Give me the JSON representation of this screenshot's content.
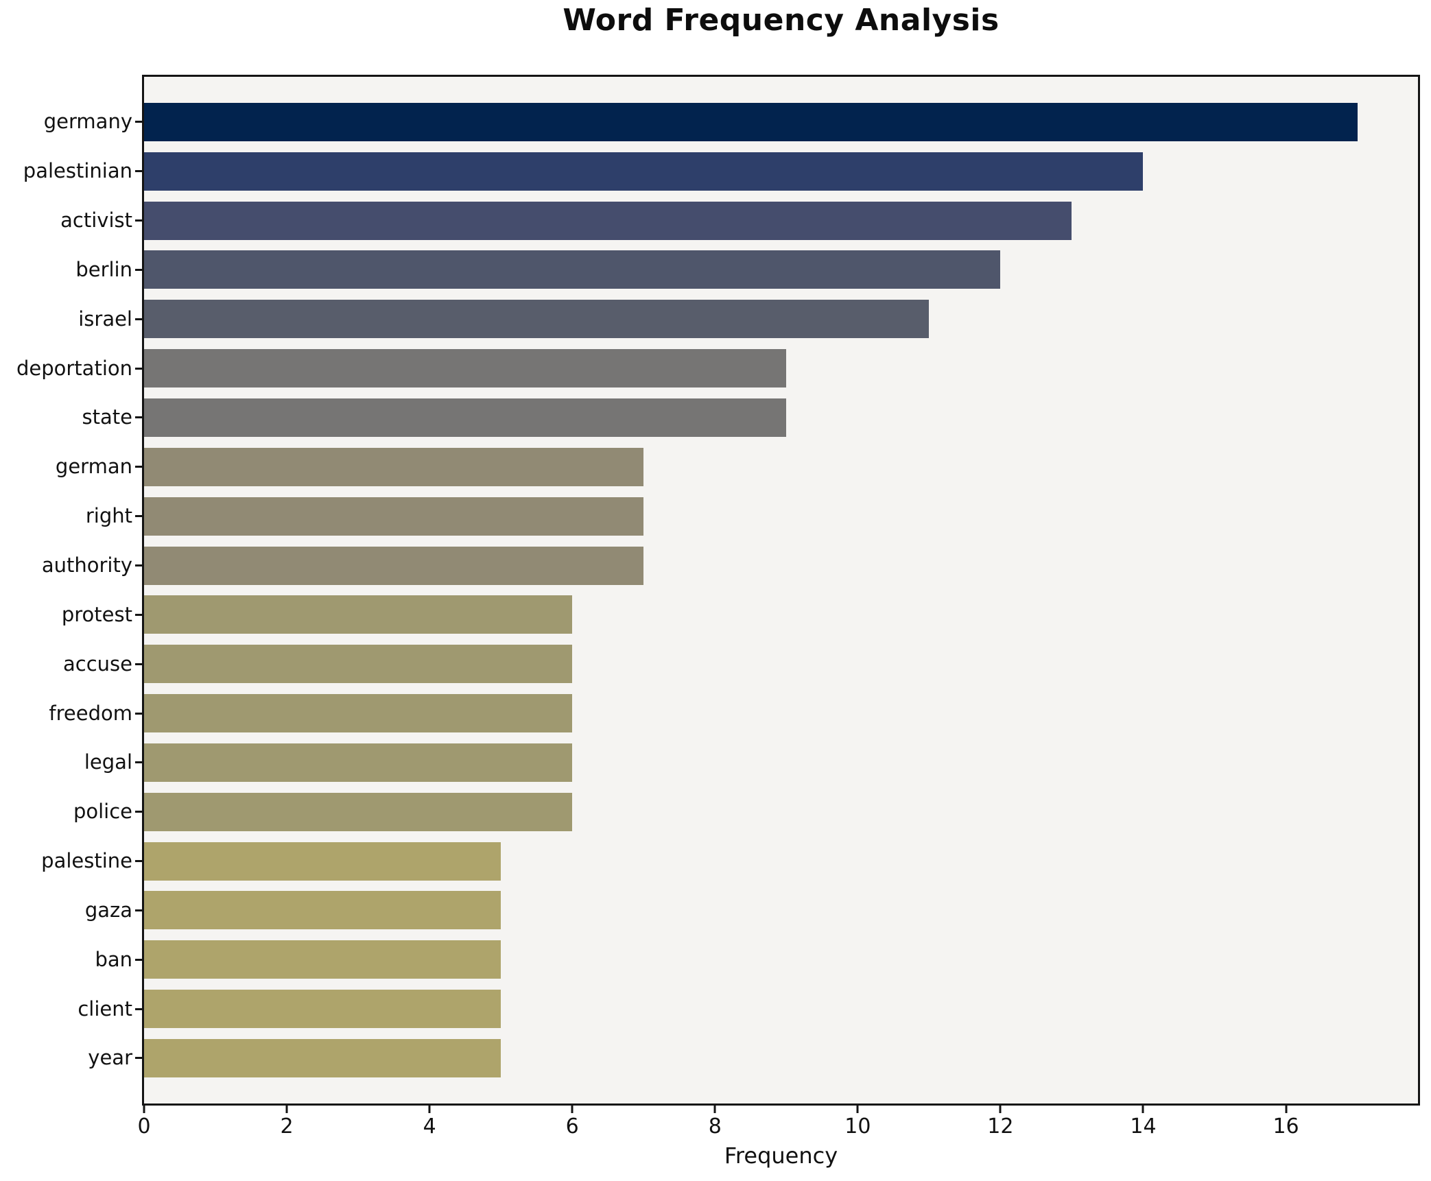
{
  "title": "Word Frequency Analysis",
  "xlabel": "Frequency",
  "chart_data": {
    "type": "bar",
    "orientation": "horizontal",
    "title": "Word Frequency Analysis",
    "xlabel": "Frequency",
    "ylabel": "",
    "categories": [
      "germany",
      "palestinian",
      "activist",
      "berlin",
      "israel",
      "deportation",
      "state",
      "german",
      "right",
      "authority",
      "protest",
      "accuse",
      "freedom",
      "legal",
      "police",
      "palestine",
      "gaza",
      "ban",
      "client",
      "year"
    ],
    "values": [
      17,
      14,
      13,
      12,
      11,
      9,
      9,
      7,
      7,
      7,
      6,
      6,
      6,
      6,
      6,
      5,
      5,
      5,
      5,
      5
    ],
    "bar_colors": [
      "#02234e",
      "#2e3f6a",
      "#454d6d",
      "#4f566b",
      "#585d6b",
      "#767574",
      "#767574",
      "#918a74",
      "#918a74",
      "#918a74",
      "#9f9970",
      "#9f9970",
      "#9f9970",
      "#9f9970",
      "#9f9970",
      "#aea46b",
      "#aea46b",
      "#aea46b",
      "#aea46b",
      "#aea46b"
    ],
    "xlim": [
      0,
      17.85
    ],
    "xticks": [
      0,
      2,
      4,
      6,
      8,
      10,
      12,
      14,
      16
    ],
    "grid": false,
    "legend": false,
    "plot_background": "#f5f4f2",
    "figure_background": "#ffffff",
    "spine_color": "#141414"
  }
}
